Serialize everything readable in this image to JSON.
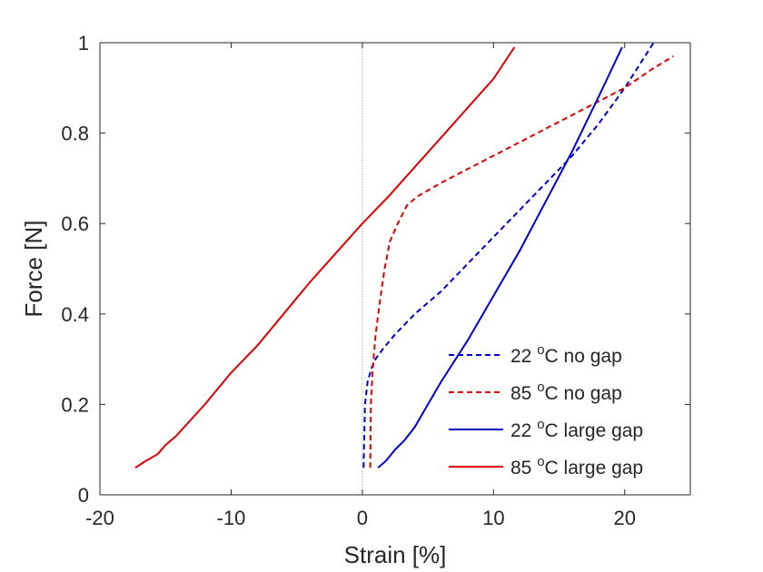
{
  "chart_data": {
    "type": "line",
    "title": "",
    "xlabel": "Strain [%]",
    "ylabel": "Force [N]",
    "xlim": [
      -20,
      25
    ],
    "ylim": [
      0,
      1
    ],
    "xticks": [
      "-20",
      "-10",
      "0",
      "10",
      "20"
    ],
    "yticks": [
      "0",
      "0.2",
      "0.4",
      "0.6",
      "0.8",
      "1"
    ],
    "xtick_values": [
      -20,
      -10,
      0,
      10,
      20
    ],
    "ytick_values": [
      0,
      0.2,
      0.4,
      0.6,
      0.8,
      1
    ],
    "grid": false,
    "zero_reference_line": true,
    "legend_position": "bottom-right",
    "series": [
      {
        "name": "22 °C no gap",
        "label_parts": [
          "22 ",
          "o",
          "C no gap"
        ],
        "color": "#0000cc",
        "style": "dashed",
        "x": [
          0.1,
          0.2,
          0.4,
          0.7,
          1.0,
          1.5,
          2.5,
          4.0,
          6.0,
          8.0,
          10.0,
          12.0,
          14.0,
          16.0,
          18.0,
          20.0,
          22.2
        ],
        "y": [
          0.06,
          0.2,
          0.25,
          0.28,
          0.3,
          0.32,
          0.355,
          0.4,
          0.45,
          0.51,
          0.57,
          0.63,
          0.69,
          0.75,
          0.82,
          0.9,
          1.0
        ]
      },
      {
        "name": "85 °C no gap",
        "label_parts": [
          "85 ",
          "o",
          "C no gap"
        ],
        "color": "#dd0000",
        "style": "dashed",
        "x": [
          0.6,
          0.65,
          0.8,
          1.0,
          1.3,
          1.7,
          2.1,
          2.7,
          3.4,
          4.2,
          6.0,
          8.0,
          10.0,
          12.0,
          14.0,
          16.0,
          18.0,
          20.0,
          22.0,
          23.7
        ],
        "y": [
          0.06,
          0.2,
          0.28,
          0.35,
          0.42,
          0.5,
          0.56,
          0.6,
          0.64,
          0.66,
          0.69,
          0.72,
          0.75,
          0.78,
          0.81,
          0.84,
          0.87,
          0.9,
          0.94,
          0.97
        ]
      },
      {
        "name": "22 °C large gap",
        "label_parts": [
          "22 ",
          "o",
          "C large gap"
        ],
        "color": "#0000cc",
        "style": "solid",
        "x": [
          1.2,
          1.8,
          2.5,
          3.2,
          4.0,
          5.0,
          6.0,
          8.0,
          10.0,
          12.0,
          14.0,
          16.0,
          18.0,
          19.8
        ],
        "y": [
          0.06,
          0.075,
          0.1,
          0.12,
          0.15,
          0.2,
          0.25,
          0.34,
          0.44,
          0.54,
          0.65,
          0.76,
          0.88,
          0.99
        ]
      },
      {
        "name": "85 °C large gap",
        "label_parts": [
          "85 ",
          "o",
          "C large gap"
        ],
        "color": "#dd0000",
        "style": "solid",
        "x": [
          -17.3,
          -16.5,
          -15.6,
          -15.0,
          -14.2,
          -12.0,
          -10.0,
          -8.0,
          -6.0,
          -4.0,
          -2.0,
          0.0,
          2.0,
          4.0,
          6.0,
          8.0,
          10.0,
          11.6
        ],
        "y": [
          0.06,
          0.075,
          0.09,
          0.11,
          0.13,
          0.2,
          0.27,
          0.33,
          0.4,
          0.47,
          0.535,
          0.6,
          0.66,
          0.725,
          0.79,
          0.855,
          0.92,
          0.99
        ]
      }
    ]
  }
}
